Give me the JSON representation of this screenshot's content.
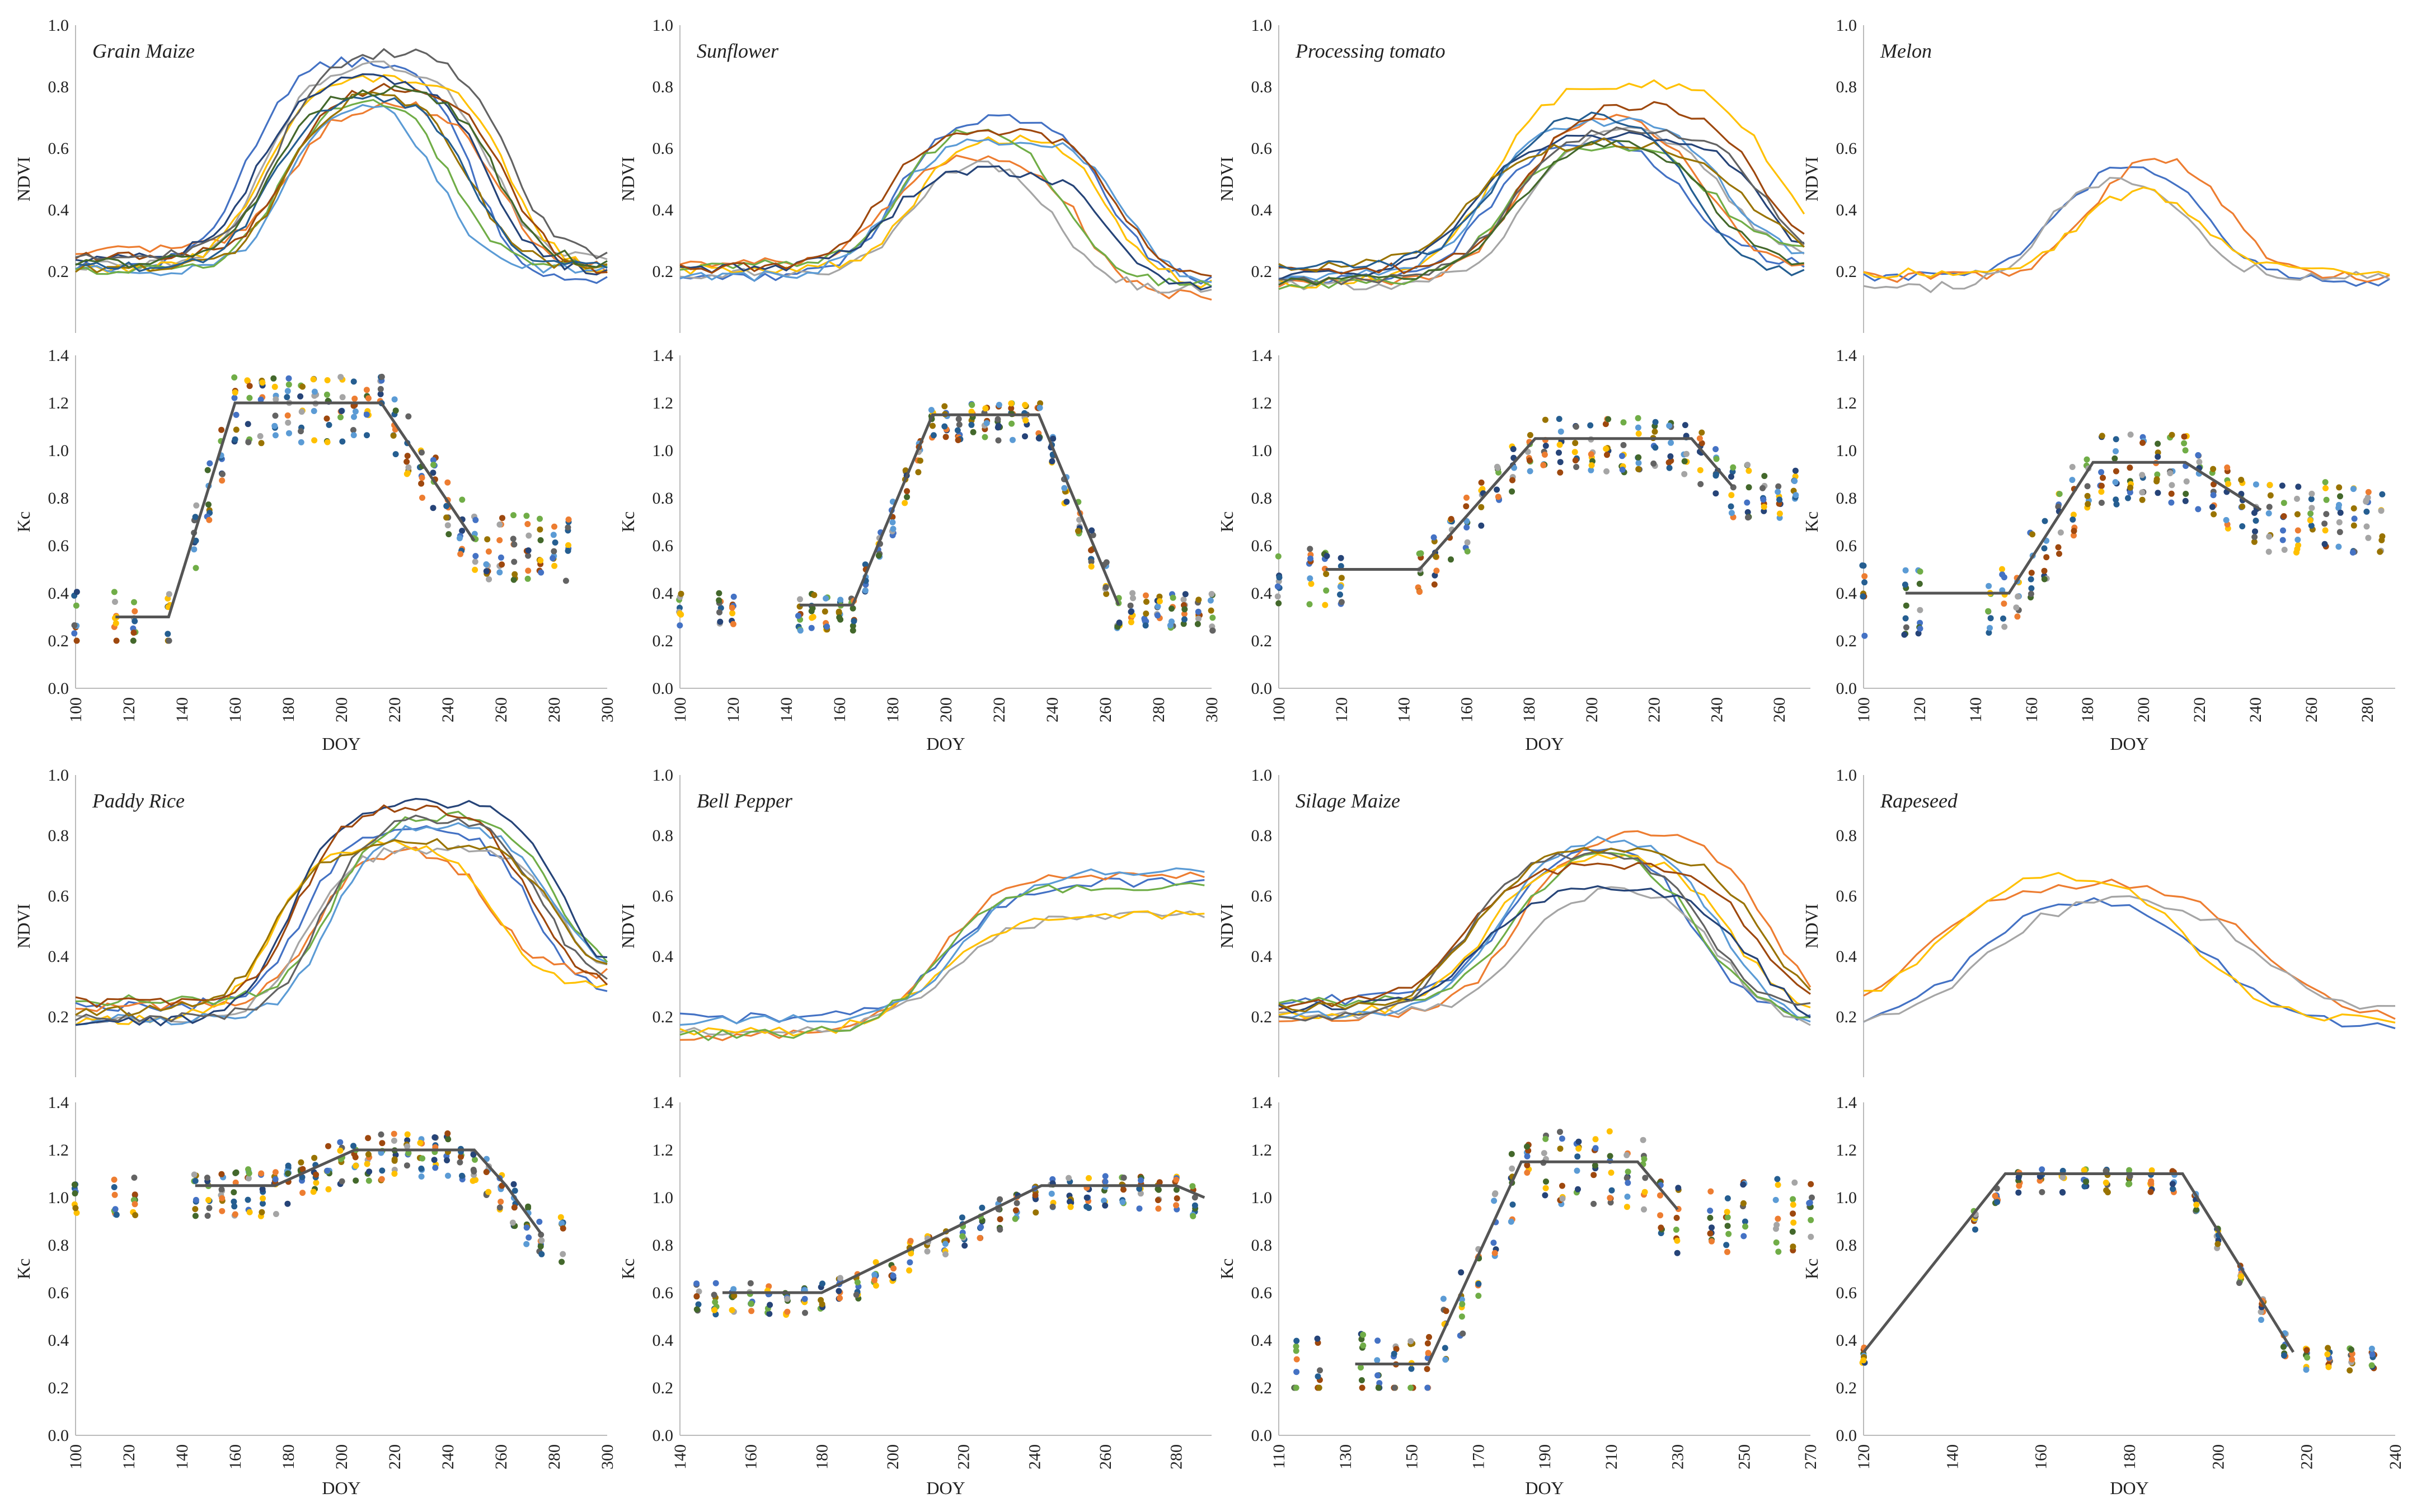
{
  "chart_data": {
    "type": "multi-panel",
    "common": {
      "ndvi_ylabel": "NDVI",
      "kc_ylabel": "Kc",
      "xlabel": "DOY",
      "ndvi_ylim": [
        0,
        1
      ],
      "ndvi_yticks": [
        "0.2",
        "0.4",
        "0.6",
        "0.8",
        "1.0"
      ],
      "kc_ylim": [
        0,
        1.4
      ],
      "kc_yticks": [
        "0.0",
        "0.2",
        "0.4",
        "0.6",
        "0.8",
        "1.0",
        "1.2",
        "1.4"
      ],
      "series_colors": [
        "#4472c4",
        "#ed7d31",
        "#a5a5a5",
        "#ffc000",
        "#5b9bd5",
        "#70ad47",
        "#264478",
        "#9e480e",
        "#636363",
        "#997300",
        "#255e91",
        "#43682b"
      ],
      "kc_curve_color": "#555555"
    },
    "crops": [
      {
        "name": "Grain Maize",
        "xlim": [
          100,
          300
        ],
        "xticks": [
          100,
          120,
          140,
          160,
          180,
          200,
          220,
          240,
          260,
          280,
          300
        ],
        "ndvi": {
          "n_series": 12,
          "start": 0.24,
          "peak": 0.85,
          "rise": 170,
          "fall": 250,
          "end": 0.2
        },
        "kc_curve": {
          "x": [
            115,
            135,
            160,
            215,
            250
          ],
          "y": [
            0.3,
            0.3,
            1.2,
            1.2,
            0.62
          ]
        },
        "kc_points": {
          "doys": [
            100,
            115,
            122,
            135,
            145,
            150,
            155,
            160,
            165,
            170,
            175,
            180,
            185,
            190,
            195,
            200,
            205,
            210,
            215,
            220,
            225,
            230,
            235,
            240,
            245,
            250,
            255,
            260,
            265,
            270,
            275,
            280,
            285
          ],
          "spread": 0.14
        }
      },
      {
        "name": "Sunflower",
        "xlim": [
          100,
          300
        ],
        "xticks": [
          100,
          120,
          140,
          160,
          180,
          200,
          220,
          240,
          260,
          280,
          300
        ],
        "ndvi": {
          "n_series": 8,
          "start": 0.2,
          "peak": 0.62,
          "rise": 185,
          "fall": 255,
          "end": 0.14
        },
        "kc_curve": {
          "x": [
            145,
            165,
            195,
            235,
            265
          ],
          "y": [
            0.35,
            0.35,
            1.15,
            1.15,
            0.35
          ]
        },
        "kc_points": {
          "doys": [
            100,
            115,
            120,
            145,
            150,
            155,
            160,
            165,
            170,
            175,
            180,
            185,
            190,
            195,
            200,
            205,
            210,
            215,
            220,
            225,
            230,
            235,
            240,
            245,
            250,
            255,
            260,
            265,
            270,
            275,
            280,
            285,
            290,
            295,
            300
          ],
          "spread": 0.08
        }
      },
      {
        "name": "Processing tomato",
        "xlim": [
          100,
          270
        ],
        "xticks": [
          100,
          120,
          140,
          160,
          180,
          200,
          220,
          240,
          260
        ],
        "ndvi": {
          "n_series": 12,
          "start": 0.18,
          "peak": 0.72,
          "rise": 170,
          "fall": 245,
          "end": 0.22
        },
        "kc_curve": {
          "x": [
            115,
            145,
            182,
            232,
            245
          ],
          "y": [
            0.5,
            0.5,
            1.05,
            1.05,
            0.85
          ]
        },
        "kc_points": {
          "doys": [
            100,
            110,
            115,
            120,
            145,
            150,
            155,
            160,
            165,
            170,
            175,
            180,
            185,
            190,
            195,
            200,
            205,
            210,
            215,
            220,
            225,
            230,
            235,
            240,
            245,
            250,
            255,
            260,
            265
          ],
          "spread": 0.12
        }
      },
      {
        "name": "Melon",
        "xlim": [
          100,
          290
        ],
        "xticks": [
          100,
          120,
          140,
          160,
          180,
          200,
          220,
          240,
          260,
          280
        ],
        "ndvi": {
          "n_series": 4,
          "start": 0.18,
          "peak": 0.6,
          "rise": 170,
          "fall": 230,
          "end": 0.18
        },
        "kc_curve": {
          "x": [
            115,
            152,
            182,
            215,
            242
          ],
          "y": [
            0.4,
            0.4,
            0.95,
            0.95,
            0.75
          ]
        },
        "kc_points": {
          "doys": [
            100,
            115,
            120,
            145,
            150,
            155,
            160,
            165,
            170,
            175,
            180,
            185,
            190,
            195,
            200,
            205,
            210,
            215,
            220,
            225,
            230,
            235,
            240,
            245,
            250,
            255,
            260,
            265,
            270,
            275,
            280,
            285
          ],
          "spread": 0.15
        }
      },
      {
        "name": "Paddy Rice",
        "xlim": [
          100,
          300
        ],
        "xticks": [
          100,
          120,
          140,
          160,
          180,
          200,
          220,
          240,
          260,
          280,
          300
        ],
        "ndvi": {
          "n_series": 10,
          "start": 0.22,
          "peak": 0.82,
          "rise": 185,
          "fall": 270,
          "end": 0.3
        },
        "kc_curve": {
          "x": [
            145,
            175,
            205,
            250,
            262,
            275
          ],
          "y": [
            1.05,
            1.05,
            1.2,
            1.2,
            1.05,
            0.85
          ]
        },
        "kc_points": {
          "doys": [
            100,
            115,
            122,
            145,
            150,
            155,
            160,
            165,
            170,
            175,
            180,
            185,
            190,
            195,
            200,
            205,
            210,
            215,
            220,
            225,
            230,
            235,
            240,
            245,
            250,
            255,
            260,
            265,
            270,
            275,
            283
          ],
          "spread": 0.1
        }
      },
      {
        "name": "Bell Pepper",
        "xlim": [
          140,
          290
        ],
        "xticks": [
          140,
          160,
          180,
          200,
          220,
          240,
          260,
          280
        ],
        "ndvi": {
          "n_series": 6,
          "start": 0.17,
          "peak": 0.6,
          "rise": 215,
          "fall": 320,
          "end": 0.58
        },
        "kc_curve": {
          "x": [
            152,
            180,
            242,
            280,
            288
          ],
          "y": [
            0.6,
            0.6,
            1.05,
            1.05,
            1.0
          ]
        },
        "kc_points": {
          "doys": [
            145,
            150,
            155,
            160,
            165,
            170,
            175,
            180,
            185,
            190,
            195,
            200,
            205,
            210,
            215,
            220,
            225,
            230,
            235,
            240,
            245,
            250,
            255,
            260,
            265,
            270,
            275,
            280,
            285
          ],
          "spread": 0.07
        }
      },
      {
        "name": "Silage Maize",
        "xlim": [
          110,
          270
        ],
        "xticks": [
          110,
          130,
          150,
          170,
          190,
          210,
          230,
          250,
          270
        ],
        "ndvi": {
          "n_series": 10,
          "start": 0.22,
          "peak": 0.72,
          "rise": 175,
          "fall": 245,
          "end": 0.18
        },
        "kc_curve": {
          "x": [
            133,
            155,
            183,
            218,
            230
          ],
          "y": [
            0.3,
            0.3,
            1.15,
            1.15,
            0.95
          ]
        },
        "kc_points": {
          "doys": [
            115,
            122,
            135,
            140,
            145,
            150,
            155,
            160,
            165,
            170,
            175,
            180,
            185,
            190,
            195,
            200,
            205,
            210,
            215,
            220,
            225,
            230,
            240,
            245,
            250,
            260,
            265,
            270
          ],
          "spread": 0.16
        }
      },
      {
        "name": "Rapeseed",
        "xlim": [
          120,
          240
        ],
        "xticks": [
          120,
          140,
          160,
          180,
          200,
          220,
          240
        ],
        "ndvi": {
          "n_series": 4,
          "start": 0.2,
          "peak": 0.7,
          "rise": 140,
          "fall": 200,
          "end": 0.18
        },
        "kc_curve": {
          "x": [
            120,
            152,
            192,
            217
          ],
          "y": [
            0.35,
            1.1,
            1.1,
            0.35
          ]
        },
        "kc_points": {
          "doys": [
            120,
            145,
            150,
            155,
            160,
            165,
            170,
            175,
            180,
            185,
            190,
            195,
            200,
            205,
            210,
            215,
            220,
            225,
            230,
            235
          ],
          "spread": 0.05
        }
      }
    ]
  }
}
